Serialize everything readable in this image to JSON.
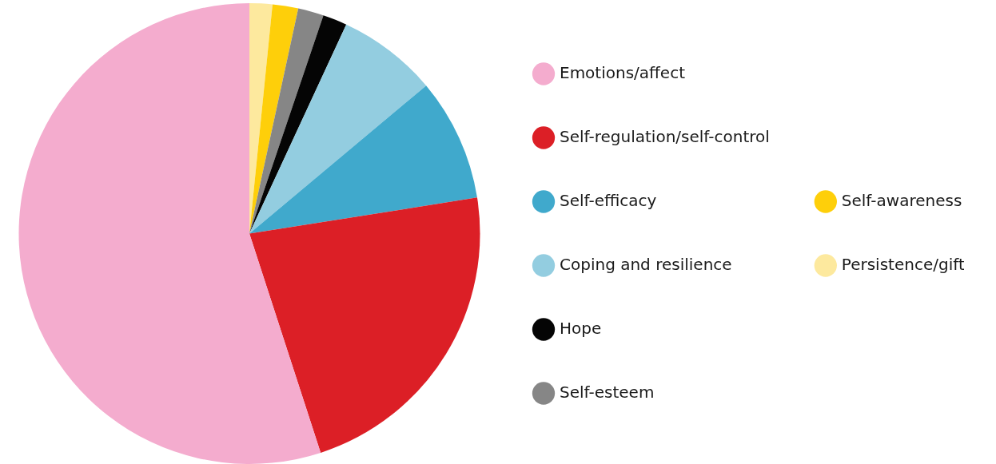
{
  "chart_data": {
    "type": "pie",
    "categories": [
      "Emotions/affect",
      "Self-regulation/self-control",
      "Self-efficacy",
      "Coping and resilience",
      "Hope",
      "Self-esteem",
      "Self-awareness",
      "Persistence/gift"
    ],
    "values": [
      55.0,
      22.5,
      8.6,
      7.0,
      1.7,
      1.8,
      1.8,
      1.6
    ],
    "colors": [
      "#f4acce",
      "#dc1f26",
      "#40a9cc",
      "#93cde0",
      "#050505",
      "#868686",
      "#fecf0a",
      "#fde99e"
    ],
    "legend": "right"
  }
}
